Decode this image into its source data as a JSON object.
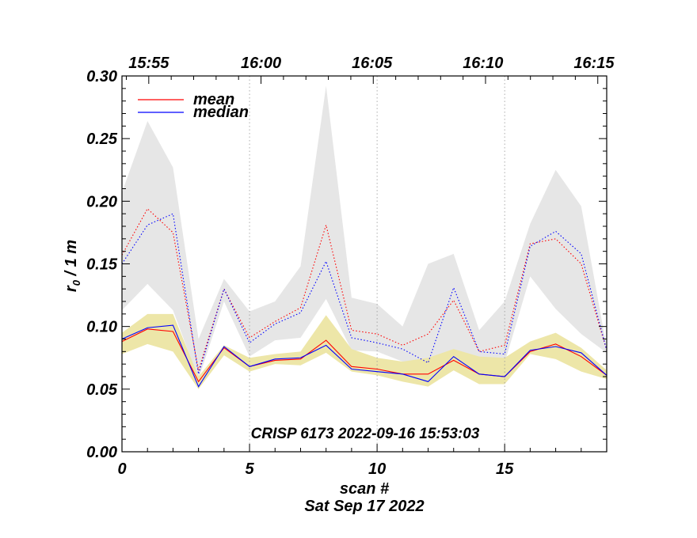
{
  "chart_data": {
    "type": "line",
    "title": "CRISP 6173 2022-09-16 15:53:03",
    "xlabel": "scan #",
    "subtitle": "Sat Sep 17 2022",
    "ylabel_main": "r",
    "ylabel_sub": "0",
    "ylabel_rest": " / 1 m",
    "xlim": [
      0,
      19
    ],
    "ylim": [
      0,
      0.3
    ],
    "x_ticks": [
      "0",
      "5",
      "10",
      "15"
    ],
    "y_ticks": [
      "0.00",
      "0.05",
      "0.10",
      "0.15",
      "0.20",
      "0.25",
      "0.30"
    ],
    "time_ticks": [
      {
        "label": "15:55",
        "scan": 1.05
      },
      {
        "label": "16:00",
        "scan": 5.45
      },
      {
        "label": "16:05",
        "scan": 9.8
      },
      {
        "label": "16:10",
        "scan": 14.15
      },
      {
        "label": "16:15",
        "scan": 18.5
      }
    ],
    "legend": {
      "position": "top-left",
      "entries": [
        {
          "name": "mean",
          "color": "#ff0000"
        },
        {
          "name": "median",
          "color": "#0000ff"
        }
      ]
    },
    "x": [
      0,
      1,
      2,
      3,
      4,
      5,
      6,
      7,
      8,
      9,
      10,
      11,
      12,
      13,
      14,
      15,
      16,
      17,
      18,
      19
    ],
    "series": [
      {
        "name": "mean",
        "style": "solid",
        "color": "#ff0000",
        "values": [
          0.088,
          0.098,
          0.096,
          0.056,
          0.083,
          0.068,
          0.073,
          0.074,
          0.089,
          0.068,
          0.066,
          0.062,
          0.062,
          0.073,
          0.062,
          0.06,
          0.08,
          0.086,
          0.076,
          0.061
        ]
      },
      {
        "name": "median",
        "style": "solid",
        "color": "#0000ff",
        "values": [
          0.09,
          0.099,
          0.101,
          0.052,
          0.084,
          0.068,
          0.074,
          0.075,
          0.085,
          0.066,
          0.064,
          0.062,
          0.056,
          0.076,
          0.062,
          0.06,
          0.081,
          0.084,
          0.079,
          0.061
        ]
      },
      {
        "name": "mean (upper)",
        "style": "dotted",
        "color": "#ff0000",
        "values": [
          0.157,
          0.194,
          0.175,
          0.065,
          0.13,
          0.091,
          0.104,
          0.115,
          0.181,
          0.097,
          0.094,
          0.085,
          0.094,
          0.121,
          0.08,
          0.085,
          0.166,
          0.17,
          0.15,
          0.081
        ]
      },
      {
        "name": "median (upper)",
        "style": "dotted",
        "color": "#0000ff",
        "values": [
          0.15,
          0.181,
          0.19,
          0.062,
          0.13,
          0.087,
          0.102,
          0.111,
          0.152,
          0.091,
          0.087,
          0.082,
          0.071,
          0.131,
          0.08,
          0.078,
          0.164,
          0.176,
          0.158,
          0.081
        ]
      }
    ],
    "bands": [
      {
        "name": "upper spread",
        "color": "#e6e6e6",
        "upper": [
          0.207,
          0.264,
          0.227,
          0.09,
          0.138,
          0.112,
          0.12,
          0.148,
          0.292,
          0.123,
          0.118,
          0.1,
          0.15,
          0.158,
          0.097,
          0.12,
          0.182,
          0.225,
          0.196,
          0.083
        ],
        "lower": [
          0.113,
          0.134,
          0.113,
          0.058,
          0.12,
          0.076,
          0.089,
          0.091,
          0.122,
          0.081,
          0.08,
          0.072,
          0.072,
          0.081,
          0.068,
          0.071,
          0.14,
          0.114,
          0.094,
          0.079
        ]
      },
      {
        "name": "lower spread",
        "color": "#ede6a8",
        "upper": [
          0.095,
          0.11,
          0.11,
          0.06,
          0.085,
          0.075,
          0.078,
          0.08,
          0.109,
          0.082,
          0.075,
          0.072,
          0.075,
          0.082,
          0.076,
          0.075,
          0.088,
          0.095,
          0.083,
          0.065
        ]
      },
      {
        "name": "lower spread (min)",
        "color": "#ede6a8",
        "lower": [
          0.078,
          0.086,
          0.08,
          0.05,
          0.077,
          0.064,
          0.07,
          0.069,
          0.079,
          0.064,
          0.061,
          0.056,
          0.052,
          0.065,
          0.054,
          0.054,
          0.078,
          0.074,
          0.064,
          0.058
        ]
      }
    ]
  }
}
